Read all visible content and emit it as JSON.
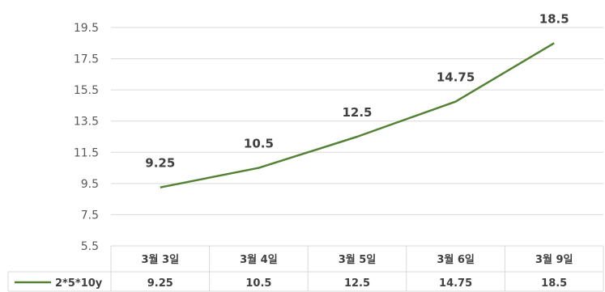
{
  "chart_data": {
    "type": "line",
    "title": "",
    "xlabel": "",
    "ylabel": "",
    "categories": [
      "3월 3일",
      "3월 4일",
      "3월 5일",
      "3월 6일",
      "3월 9일"
    ],
    "series": [
      {
        "name": "2*5*10y",
        "values": [
          9.25,
          10.5,
          12.5,
          14.75,
          18.5
        ],
        "labels": [
          "9.25",
          "10.5",
          "12.5",
          "14.75",
          "18.5"
        ]
      }
    ],
    "ylim": [
      5.5,
      19.5
    ],
    "yticks": [
      "5.5",
      "7.5",
      "9.5",
      "11.5",
      "13.5",
      "15.5",
      "17.5",
      "19.5"
    ],
    "grid": true,
    "legend": "data-table",
    "colors": {
      "series": "#548235",
      "grid": "#d9d9d9",
      "text": "#404040",
      "axis_text": "#595959"
    }
  }
}
